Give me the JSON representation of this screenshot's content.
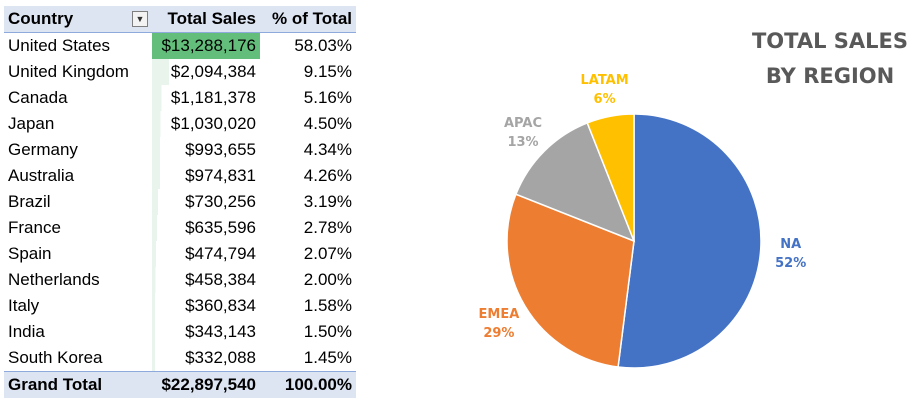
{
  "table": {
    "headers": {
      "country": "Country",
      "sales": "Total Sales",
      "pct": "% of Total"
    },
    "filter_icon": "filter-sort-icon",
    "rows": [
      {
        "country": "United States",
        "sales": "$13,288,176",
        "value": 13288176,
        "pct": "58.03%"
      },
      {
        "country": "United Kingdom",
        "sales": "$2,094,384",
        "value": 2094384,
        "pct": "9.15%"
      },
      {
        "country": "Canada",
        "sales": "$1,181,378",
        "value": 1181378,
        "pct": "5.16%"
      },
      {
        "country": "Japan",
        "sales": "$1,030,020",
        "value": 1030020,
        "pct": "4.50%"
      },
      {
        "country": "Germany",
        "sales": "$993,655",
        "value": 993655,
        "pct": "4.34%"
      },
      {
        "country": "Australia",
        "sales": "$974,831",
        "value": 974831,
        "pct": "4.26%"
      },
      {
        "country": "Brazil",
        "sales": "$730,256",
        "value": 730256,
        "pct": "3.19%"
      },
      {
        "country": "France",
        "sales": "$635,596",
        "value": 635596,
        "pct": "2.78%"
      },
      {
        "country": "Spain",
        "sales": "$474,794",
        "value": 474794,
        "pct": "2.07%"
      },
      {
        "country": "Netherlands",
        "sales": "$458,384",
        "value": 458384,
        "pct": "2.00%"
      },
      {
        "country": "Italy",
        "sales": "$360,834",
        "value": 360834,
        "pct": "1.58%"
      },
      {
        "country": "India",
        "sales": "$343,143",
        "value": 343143,
        "pct": "1.50%"
      },
      {
        "country": "South Korea",
        "sales": "$332,088",
        "value": 332088,
        "pct": "1.45%"
      }
    ],
    "total": {
      "label": "Grand Total",
      "sales": "$22,897,540",
      "pct": "100.00%"
    },
    "colors": {
      "header_bg": "#dde5f3",
      "databar_max": "#63be7b",
      "databar_light": "#e9f5ec"
    }
  },
  "chart_data": {
    "type": "pie",
    "title_lines": [
      "TOTAL SALES",
      "BY REGION"
    ],
    "slices": [
      {
        "name": "NA",
        "value": 52,
        "label": "52%",
        "color": "#4472c4"
      },
      {
        "name": "EMEA",
        "value": 29,
        "label": "29%",
        "color": "#ed7d31"
      },
      {
        "name": "APAC",
        "value": 13,
        "label": "13%",
        "color": "#a5a5a5"
      },
      {
        "name": "LATAM",
        "value": 6,
        "label": "6%",
        "color": "#ffc000"
      }
    ],
    "start_angle_deg": 0,
    "direction": "clockwise",
    "legend": "none",
    "title_color": "#595959"
  }
}
